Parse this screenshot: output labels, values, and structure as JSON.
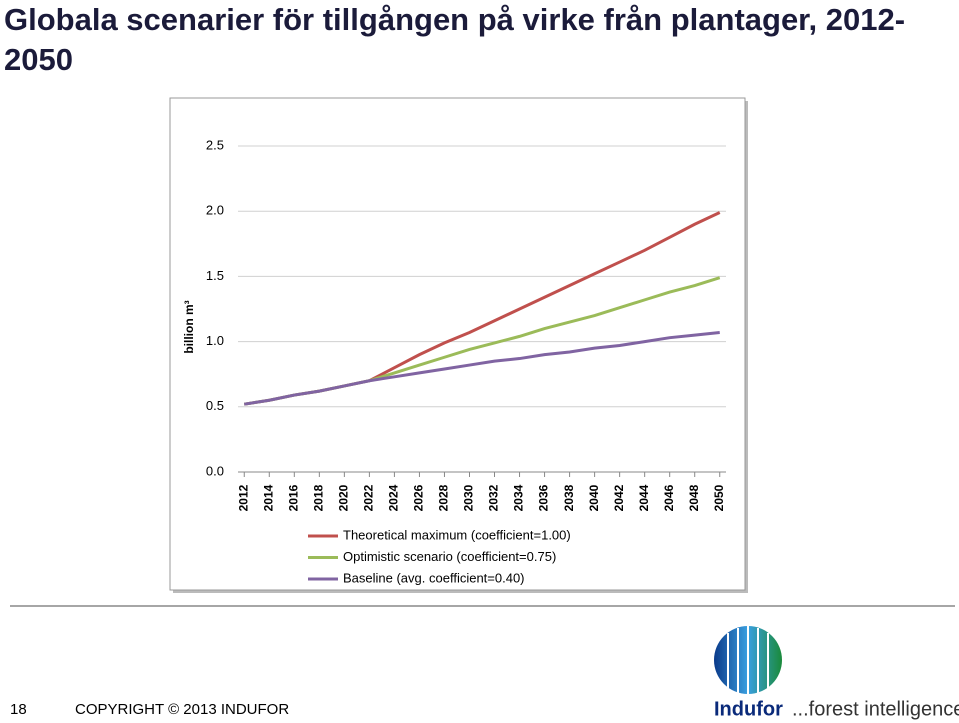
{
  "chart_data": {
    "type": "line",
    "title": "Globala scenarier för tillgången på virke från plantager, 2012-2050",
    "y_label": "billion m³",
    "x": [
      2012,
      2014,
      2016,
      2018,
      2020,
      2022,
      2024,
      2026,
      2028,
      2030,
      2032,
      2034,
      2036,
      2038,
      2040,
      2042,
      2044,
      2046,
      2048,
      2050
    ],
    "xlim": [
      2011.5,
      2050.5
    ],
    "xticks": [
      2012,
      2014,
      2016,
      2018,
      2020,
      2022,
      2024,
      2026,
      2028,
      2030,
      2032,
      2034,
      2036,
      2038,
      2040,
      2042,
      2044,
      2046,
      2048,
      2050
    ],
    "ylim": [
      0,
      2.5
    ],
    "yticks": [
      {
        "value": 0,
        "label": "0.0"
      },
      {
        "value": 0.5,
        "label": "0.5"
      },
      {
        "value": 1,
        "label": "1.0"
      },
      {
        "value": 1.5,
        "label": "1.5"
      },
      {
        "value": 2,
        "label": "2.0"
      },
      {
        "value": 2.5,
        "label": "2.5"
      }
    ],
    "grid": true,
    "legend": "bottom",
    "series": [
      {
        "name": "Theoretical maximum (coefficient=1.00)",
        "color": "#c0504d",
        "values": [
          0.52,
          0.55,
          0.59,
          0.62,
          0.66,
          0.7,
          0.8,
          0.9,
          0.99,
          1.07,
          1.16,
          1.25,
          1.34,
          1.43,
          1.52,
          1.61,
          1.7,
          1.8,
          1.9,
          1.99
        ]
      },
      {
        "name": "Optimistic scenario (coefficient=0.75)",
        "color": "#9bbb59",
        "values": [
          0.52,
          0.55,
          0.59,
          0.62,
          0.66,
          0.7,
          0.76,
          0.82,
          0.88,
          0.94,
          0.99,
          1.04,
          1.1,
          1.15,
          1.2,
          1.26,
          1.32,
          1.38,
          1.43,
          1.49
        ]
      },
      {
        "name": "Baseline (avg. coefficient=0.40)",
        "color": "#8064a2",
        "values": [
          0.52,
          0.55,
          0.59,
          0.62,
          0.66,
          0.7,
          0.73,
          0.76,
          0.79,
          0.82,
          0.85,
          0.87,
          0.9,
          0.92,
          0.95,
          0.97,
          1.0,
          1.03,
          1.05,
          1.07
        ]
      }
    ]
  },
  "footer": {
    "page": "18",
    "copyright": "COPYRIGHT © 2013 INDUFOR",
    "brand": "Indufor",
    "tagline": "...forest intelligence"
  }
}
